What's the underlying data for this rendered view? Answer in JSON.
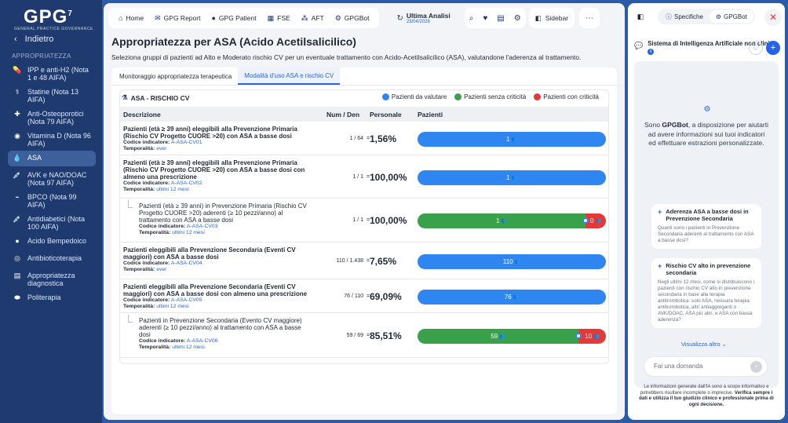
{
  "app": {
    "logo": "GPG",
    "logo_sup": "7",
    "logo_subtitle": "GENERAL PRACTICE GOVERNANCE",
    "back_label": "Indietro",
    "section_label": "APPROPRIATEZZA"
  },
  "sidebar": {
    "items": [
      {
        "label": "IPP e anti-H2 (Nota 1 e 48 AIFA)",
        "icon": "pills-icon"
      },
      {
        "label": "Statine (Nota 13 AIFA)",
        "icon": "statin-icon"
      },
      {
        "label": "Anti-Osteoporotici (Nota 79 AIFA)",
        "icon": "medkit-icon"
      },
      {
        "label": "Vitamina D (Nota 96 AIFA)",
        "icon": "vitamin-icon"
      },
      {
        "label": "ASA",
        "icon": "drops-icon"
      },
      {
        "label": "AVK e NAO/DOAC (Nota 97 AIFA)",
        "icon": "syringe-icon"
      },
      {
        "label": "BPCO (Nota 99 AIFA)",
        "icon": "lungs-icon"
      },
      {
        "label": "Antidiabetici (Nota 100 AIFA)",
        "icon": "syringe-icon"
      },
      {
        "label": "Acido Bempedoico",
        "icon": "pill-icon"
      },
      {
        "label": "Antibioticoterapia",
        "icon": "tablets-icon"
      },
      {
        "label": "Appropriatezza diagnostica",
        "icon": "file-icon"
      },
      {
        "label": "Politerapia",
        "icon": "capsules-icon"
      }
    ],
    "active_index": 4
  },
  "topbar": {
    "nav": [
      {
        "label": "Home",
        "icon": "home-icon"
      },
      {
        "label": "GPG Report",
        "icon": "mail-icon"
      },
      {
        "label": "GPG Patient",
        "icon": "user-icon"
      },
      {
        "label": "FSE",
        "icon": "folder-icon"
      },
      {
        "label": "AFT",
        "icon": "network-icon"
      },
      {
        "label": "GPGBot",
        "icon": "bot-icon"
      }
    ],
    "ultima_label": "Ultima Analisi",
    "ultima_date": "23/04/2026",
    "sidebar_label": "Sidebar"
  },
  "page": {
    "title": "Appropriatezza per ASA (Acido Acetilsalicilico)",
    "subtitle": "Seleziona gruppi di pazienti ad Alto e Moderato rischio CV per un eventuale trattamento con Acido-Acetilsalicilico (ASA), valutandone l'aderenza al trattamento.",
    "tabs": [
      "Monitoraggio appropriatezza terapeutica",
      "Modalità d'uso ASA e rischio CV"
    ],
    "active_tab": 1
  },
  "risk": {
    "header": "ASA - RISCHIO CV",
    "legend": [
      {
        "label": "Pazienti da valutare",
        "color": "#2f86f0"
      },
      {
        "label": "Pazienti senza criticità",
        "color": "#3aa14b"
      },
      {
        "label": "Pazienti con criticità",
        "color": "#e53935"
      }
    ],
    "columns": {
      "desc": "Descrizione",
      "numden": "Num / Den",
      "personale": "Personale",
      "pazienti": "Pazienti"
    },
    "meta_labels": {
      "codice": "Codice indicatore:",
      "temporalita": "Temporalità:"
    },
    "rows": [
      {
        "title": "Pazienti (età ≥ 39 anni) eleggibili alla Prevenzione Primaria (Rischio CV Progetto CUORE >20) con ASA a basse dosi",
        "codice": "A-ASA-CV01",
        "temporalita": "ever",
        "numden": "1 / 64",
        "eq": "=",
        "pct": "1,56%",
        "bars": [
          {
            "type": "blue",
            "value": 1,
            "label": "1"
          }
        ],
        "sub": false
      },
      {
        "title": "Pazienti (età ≥ 39 anni) eleggibili alla Prevenzione Primaria (Rischio CV Progetto CUORE >20) con ASA a basse dosi con almeno una prescrizione",
        "codice": "A-ASA-CV02",
        "temporalita": "ultimi 12 mesi",
        "numden": "1 / 1",
        "eq": "=",
        "pct": "100,00%",
        "bars": [
          {
            "type": "blue",
            "value": 1,
            "label": "1"
          }
        ],
        "sub": false
      },
      {
        "title": "Pazienti (età ≥ 39 anni) in Prevenzione Primaria (Rischio CV Progetto CUORE >20) aderenti (≥ 10 pezzi/anno) al trattamento con ASA a basse dosi",
        "codice": "A-ASA-CV03",
        "temporalita": "ultimi 12 mesi",
        "numden": "1 / 1",
        "eq": "=",
        "pct": "100,00%",
        "bars": [
          {
            "type": "green",
            "value": 1,
            "label": "1"
          },
          {
            "type": "red",
            "value": 0,
            "label": "0"
          }
        ],
        "sub": true
      },
      {
        "title": "Pazienti eleggibili alla Prevenzione Secondaria (Eventi CV maggiori) con ASA a basse dosi",
        "codice": "A-ASA-CV04",
        "temporalita": "ever",
        "numden": "110 / 1.438",
        "eq": "=",
        "pct": "7,65%",
        "bars": [
          {
            "type": "blue",
            "value": 110,
            "label": "110"
          }
        ],
        "sub": false
      },
      {
        "title": "Pazienti eleggibili alla Prevenzione Secondaria (Eventi CV maggiori) con ASA a basse dosi con almeno una prescrizione",
        "codice": "A-ASA-CV05",
        "temporalita": "ultimi 12 mesi",
        "numden": "76 / 110",
        "eq": "=",
        "pct": "69,09%",
        "bars": [
          {
            "type": "blue",
            "value": 76,
            "label": "76"
          }
        ],
        "sub": false
      },
      {
        "title": "Pazienti in Prevenzione Secondaria (Evento CV maggiore) aderenti (≥ 10 pezzi/anno) al trattamento con ASA a basse dosi",
        "codice": "A-ASA-CV06",
        "temporalita": "ultimi 12 mesi",
        "numden": "59 / 69",
        "eq": "=",
        "pct": "85,51%",
        "bars": [
          {
            "type": "green",
            "value": 59,
            "label": "59"
          },
          {
            "type": "red",
            "value": 10,
            "label": "10"
          }
        ],
        "sub": true
      }
    ]
  },
  "rpanel": {
    "tabs": [
      {
        "label": "Specifiche",
        "icon": "info-icon"
      },
      {
        "label": "GPGBot",
        "icon": "bot-icon"
      }
    ],
    "active_tab": 1,
    "head_title": "Sistema di Intelligenza Artificiale non clinico",
    "intro_before": "Sono ",
    "intro_bold": "GPGBot",
    "intro_after": ", a disposizione per aiutarti ad avere informazioni sui tuoi indicatori ed effettuare estrazioni personalizzate.",
    "cards": [
      {
        "title": "Aderenza ASA a basse dosi in Prevenzione Secondaria",
        "body": "Quanti sono i pazienti in Prevenzione Secondaria aderenti al trattamento con ASA a basse dosi?"
      },
      {
        "title": "Rischio CV alto in prevenzione secondaria",
        "body": "Negli ultimi 12 mesi, come si distribuiscono i pazienti con rischio CV alto in prevenzione secondaria in base alla terapia antitrombotica: solo ASA, nessuna terapia antitrombotica, altri antiaggreganti o AVK/DOAC, ASA più altri, e ASA con bassa aderenza?"
      }
    ],
    "see_more": "Visualizza altro",
    "input_placeholder": "Fai una domanda",
    "disclaimer_plain": "Le informazioni generate dall'IA sono a scopo informativo e potrebbero risultare incomplete o imprecise. ",
    "disclaimer_bold": "Verifica sempre i dati e utilizza il tuo giudizio clinico e professionale prima di ogni decisione."
  }
}
